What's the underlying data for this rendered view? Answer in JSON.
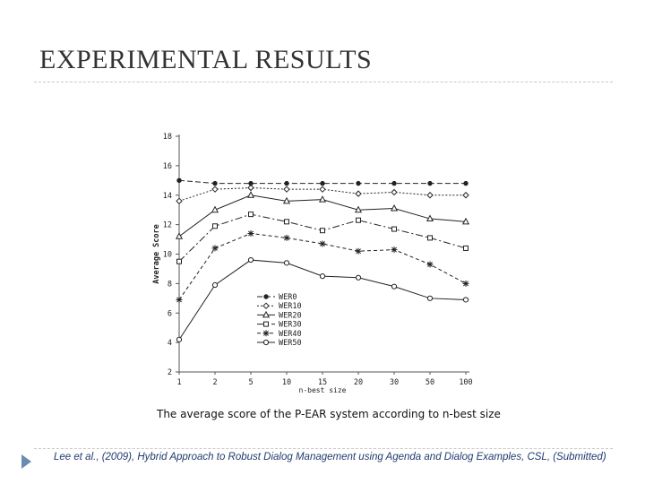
{
  "slide": {
    "title": "EXPERIMENTAL RESULTS",
    "caption": "The average score of the P-EAR system according to n-best size",
    "footer": "Lee et al., (2009), Hybrid Approach to Robust Dialog Management using Agenda and Dialog Examples, CSL, (Submitted)"
  },
  "chart_data": {
    "type": "line",
    "title": "",
    "xlabel": "n-best size",
    "ylabel": "Average Score",
    "categories": [
      "1",
      "2",
      "5",
      "10",
      "15",
      "20",
      "30",
      "50",
      "100"
    ],
    "yticks": [
      "2",
      "4",
      "6",
      "8",
      "10",
      "12",
      "14",
      "16",
      "18"
    ],
    "ylim": [
      2,
      18
    ],
    "grid": false,
    "legend_position": "inside-bottom-center",
    "series": [
      {
        "name": "WER0",
        "values": [
          15.0,
          14.8,
          14.8,
          14.8,
          14.8,
          14.8,
          14.8,
          14.8,
          14.8
        ],
        "marker": "dot",
        "dash": "6,3"
      },
      {
        "name": "WER10",
        "values": [
          13.6,
          14.4,
          14.5,
          14.4,
          14.4,
          14.1,
          14.2,
          14.0,
          14.0
        ],
        "marker": "diamond",
        "dash": "2,2"
      },
      {
        "name": "WER20",
        "values": [
          11.2,
          13.0,
          14.0,
          13.6,
          13.7,
          13.0,
          13.1,
          12.4,
          12.2
        ],
        "marker": "triangle",
        "dash": ""
      },
      {
        "name": "WER30",
        "values": [
          9.5,
          11.9,
          12.7,
          12.2,
          11.6,
          12.3,
          11.7,
          11.1,
          10.4
        ],
        "marker": "square",
        "dash": "8,3,2,3"
      },
      {
        "name": "WER40",
        "values": [
          6.9,
          10.4,
          11.4,
          11.1,
          10.7,
          10.2,
          10.3,
          9.3,
          8.0
        ],
        "marker": "asterisk",
        "dash": "4,3"
      },
      {
        "name": "WER50",
        "values": [
          4.2,
          7.9,
          9.6,
          9.4,
          8.5,
          8.4,
          7.8,
          7.0,
          6.9
        ],
        "marker": "circle",
        "dash": ""
      }
    ]
  }
}
